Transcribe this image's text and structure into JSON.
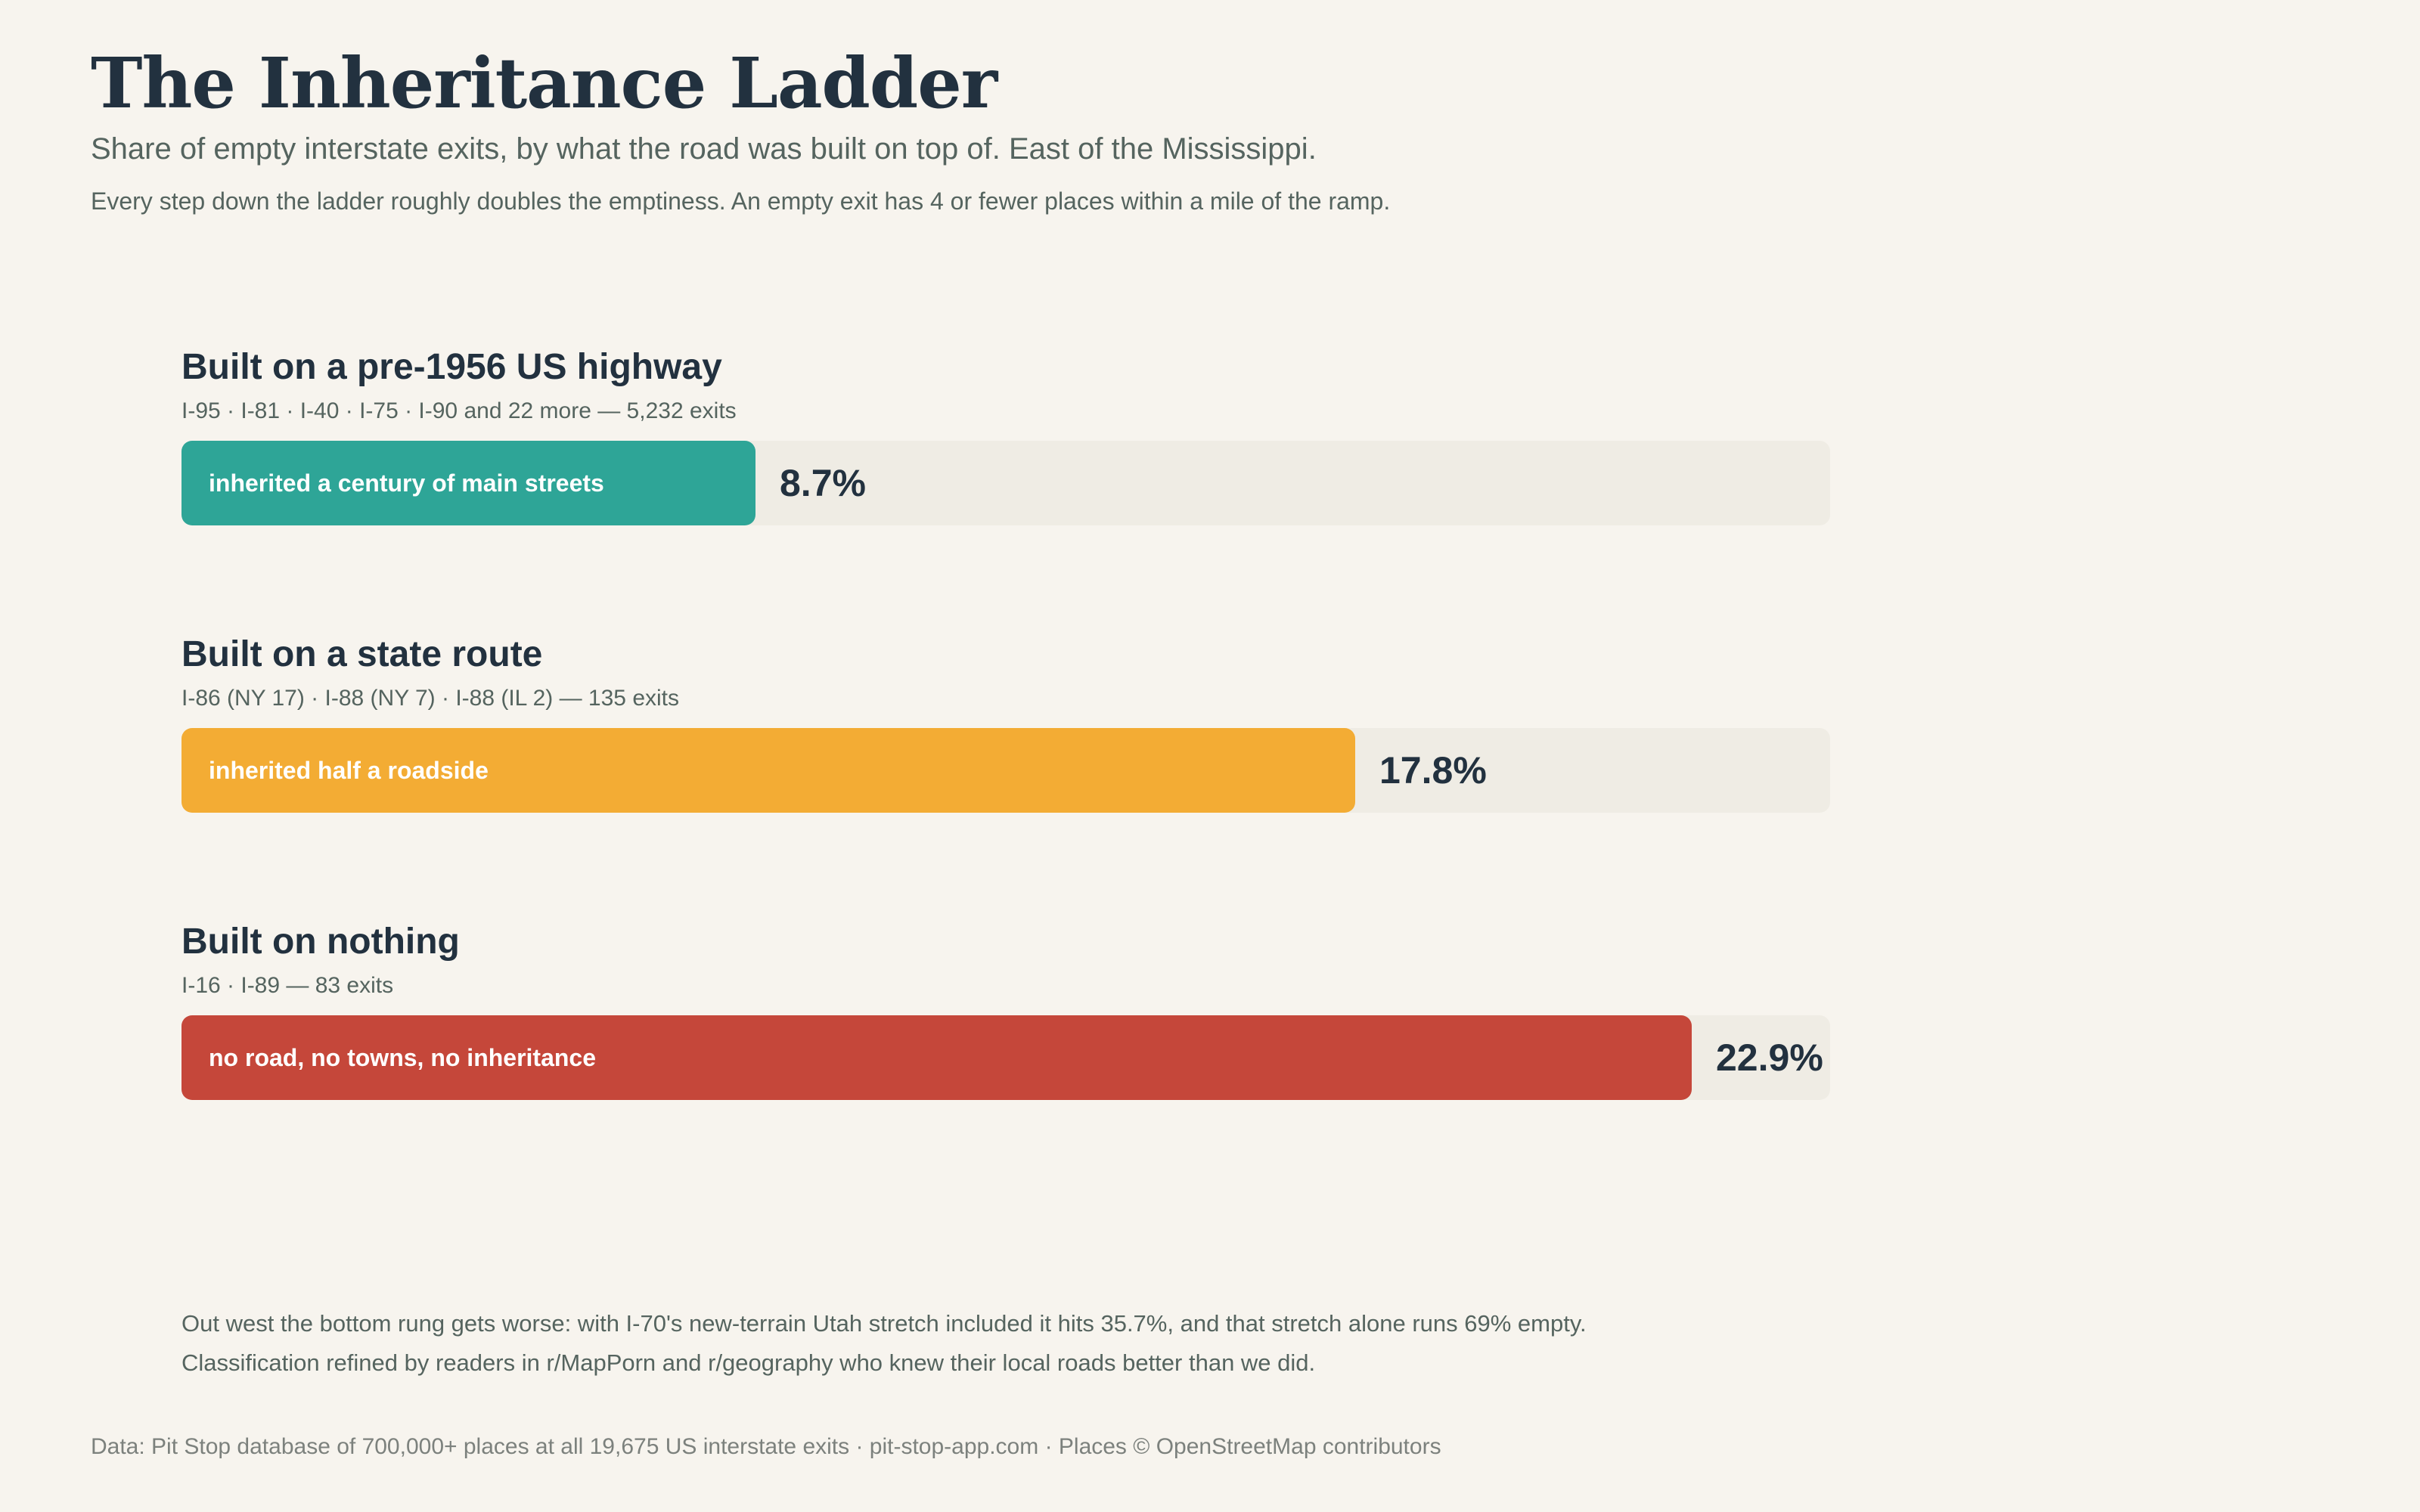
{
  "header": {
    "title": "The Inheritance Ladder",
    "subtitle": "Share of empty interstate exits, by what the road was built on top of. East of the Mississippi.",
    "note": "Every step down the ladder roughly doubles the emptiness. An empty exit has 4 or fewer places within a mile of the ramp."
  },
  "colors": {
    "background": "#f7f4ee",
    "track": "#efece4",
    "text": "#22313f",
    "muted": "#55645f"
  },
  "chart_data": {
    "type": "bar",
    "orientation": "horizontal",
    "unit": "%",
    "xlim": [
      0,
      25
    ],
    "grid": false,
    "legend": "none",
    "categories": [
      "Built on a pre-1956 US highway",
      "Built on a state route",
      "Built on nothing"
    ],
    "values": [
      8.7,
      17.8,
      22.9
    ],
    "rungs": [
      {
        "title": "Built on a pre-1956 US highway",
        "detail": "I-95 · I-81 · I-40 · I-75 · I-90 and 22 more — 5,232 exits",
        "bar_label": "inherited a century of main streets",
        "value": 8.7,
        "value_label": "8.7%",
        "color": "#2ea597"
      },
      {
        "title": "Built on a state route",
        "detail": "I-86 (NY 17) · I-88 (NY 7) · I-88 (IL 2) — 135 exits",
        "bar_label": "inherited half a roadside",
        "value": 17.8,
        "value_label": "17.8%",
        "color": "#f3ac34"
      },
      {
        "title": "Built on nothing",
        "detail": "I-16 · I-89 — 83 exits",
        "bar_label": "no road, no towns, no inheritance",
        "value": 22.9,
        "value_label": "22.9%",
        "color": "#c5473a"
      }
    ]
  },
  "footnotes": [
    "Out west the bottom rung gets worse: with I-70's new-terrain Utah stretch included it hits 35.7%, and that stretch alone runs 69% empty.",
    "Classification refined by readers in r/MapPorn and r/geography who knew their local roads better than we did."
  ],
  "source": "Data: Pit Stop database of 700,000+ places at all 19,675 US interstate exits · pit-stop-app.com · Places © OpenStreetMap contributors"
}
